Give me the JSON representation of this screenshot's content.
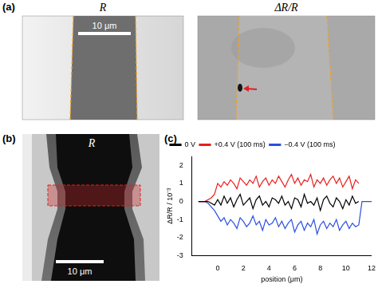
{
  "panels": {
    "a": {
      "label": "(a)",
      "images": [
        {
          "title": "R",
          "scale_bar": "10 μm"
        },
        {
          "title": "ΔR/R"
        }
      ]
    },
    "b": {
      "label": "(b)",
      "title": "R",
      "scale_bar": "10 μm"
    },
    "c": {
      "label": "(c)"
    }
  },
  "chart_data": {
    "type": "line",
    "x_label": "position (μm)",
    "y_label": "ΔR/R / 10⁻³",
    "x": [
      -1.5,
      -1.25,
      -1,
      -0.75,
      -0.5,
      -0.25,
      0,
      0.25,
      0.5,
      0.75,
      1,
      1.25,
      1.5,
      1.75,
      2,
      2.25,
      2.5,
      2.75,
      3,
      3.25,
      3.5,
      3.75,
      4,
      4.25,
      4.5,
      4.75,
      5,
      5.25,
      5.5,
      5.75,
      6,
      6.25,
      6.5,
      6.75,
      7,
      7.25,
      7.5,
      7.75,
      8,
      8.25,
      8.5,
      8.75,
      9,
      9.25,
      9.5,
      9.75,
      10,
      10.25,
      10.5,
      10.75,
      11,
      11.25,
      12
    ],
    "series": [
      {
        "name": "0 V",
        "color": "#000000",
        "values": [
          0,
          0,
          0,
          0,
          -0.1,
          -0.2,
          0.1,
          -0.2,
          0.3,
          -0.1,
          0.2,
          -0.3,
          0.1,
          0.4,
          -0.2,
          0.0,
          0.2,
          -0.4,
          0.1,
          0.3,
          -0.2,
          0.0,
          -0.3,
          0.2,
          0.1,
          -0.1,
          0.3,
          -0.2,
          0.0,
          -0.4,
          0.2,
          0.1,
          -0.3,
          0.4,
          -0.1,
          0.0,
          -0.2,
          0.2,
          -0.5,
          0.1,
          0.3,
          -0.1,
          -0.3,
          0.2,
          0.0,
          -0.4,
          0.1,
          -0.2,
          0.3,
          -0.1,
          0.0,
          null,
          null
        ]
      },
      {
        "name": "+0.4 V (100 ms)",
        "color": "#e8201e",
        "values": [
          0,
          0,
          0,
          0.1,
          0.2,
          0.4,
          1.0,
          0.8,
          1.1,
          0.9,
          1.2,
          1.0,
          0.7,
          1.3,
          1.1,
          0.9,
          1.2,
          1.0,
          1.4,
          0.8,
          1.1,
          1.3,
          0.9,
          1.2,
          1.0,
          1.4,
          1.1,
          0.8,
          1.2,
          1.5,
          1.0,
          1.3,
          0.9,
          1.2,
          1.1,
          1.5,
          0.8,
          1.2,
          1.0,
          1.3,
          0.9,
          1.2,
          1.4,
          1.0,
          1.3,
          0.8,
          1.1,
          1.4,
          0.7,
          1.2,
          1.0,
          null,
          null
        ]
      },
      {
        "name": "−0.4 V (100 ms)",
        "color": "#2a4fe0",
        "values": [
          0,
          0,
          0,
          -0.1,
          -0.3,
          -0.5,
          -0.8,
          -1.1,
          -0.9,
          -1.3,
          -1.0,
          -1.2,
          -1.5,
          -0.9,
          -1.1,
          -1.4,
          -1.2,
          -0.8,
          -1.3,
          -1.1,
          -1.6,
          -1.0,
          -1.3,
          -1.2,
          -0.9,
          -1.4,
          -1.1,
          -1.5,
          -1.2,
          -1.0,
          -1.7,
          -1.3,
          -1.1,
          -1.6,
          -1.2,
          -1.4,
          -1.0,
          -1.8,
          -1.3,
          -1.1,
          -1.5,
          -1.2,
          -1.4,
          -1.0,
          -1.6,
          -1.3,
          -1.1,
          -1.5,
          -1.2,
          -1.4,
          -1.3,
          0,
          0
        ]
      }
    ],
    "xlim": [
      -2,
      12
    ],
    "xticks": [
      0,
      2,
      4,
      6,
      8,
      10,
      12
    ],
    "ylim": [
      -3,
      2.5
    ],
    "yticks": [
      -3,
      -2,
      -1,
      0,
      1,
      2
    ],
    "grid": false,
    "legend": "top"
  }
}
